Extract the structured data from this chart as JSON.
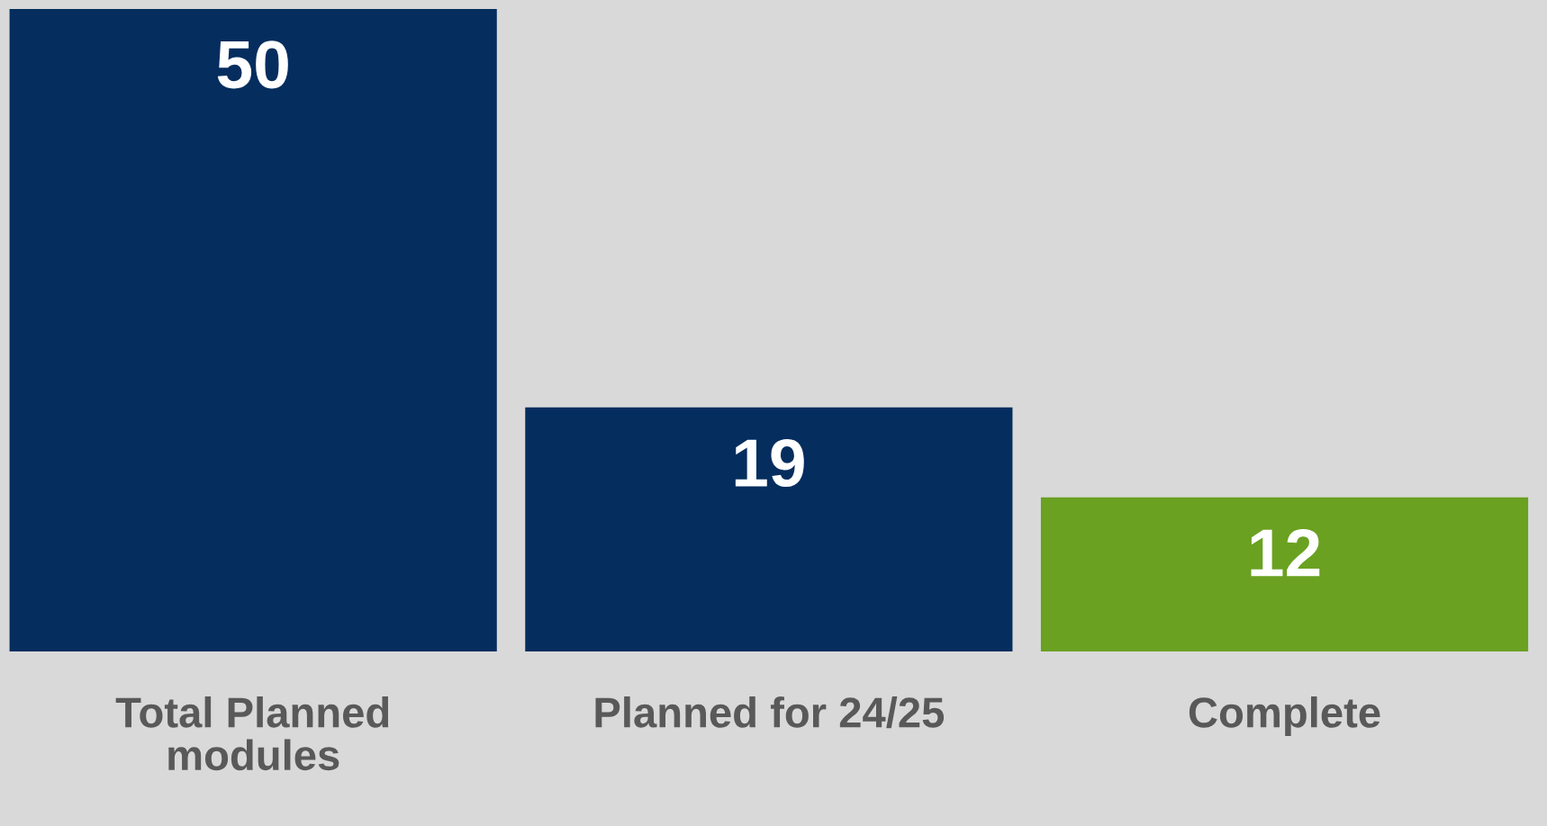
{
  "chart_data": {
    "type": "bar",
    "categories": [
      "Total Planned\nmodules",
      "Planned for 24/25",
      "Complete"
    ],
    "values": [
      50,
      19,
      12
    ],
    "colors": [
      "#052d5e",
      "#052d5e",
      "#6aa121"
    ],
    "data_labels": true,
    "grid": false,
    "legend": false
  }
}
